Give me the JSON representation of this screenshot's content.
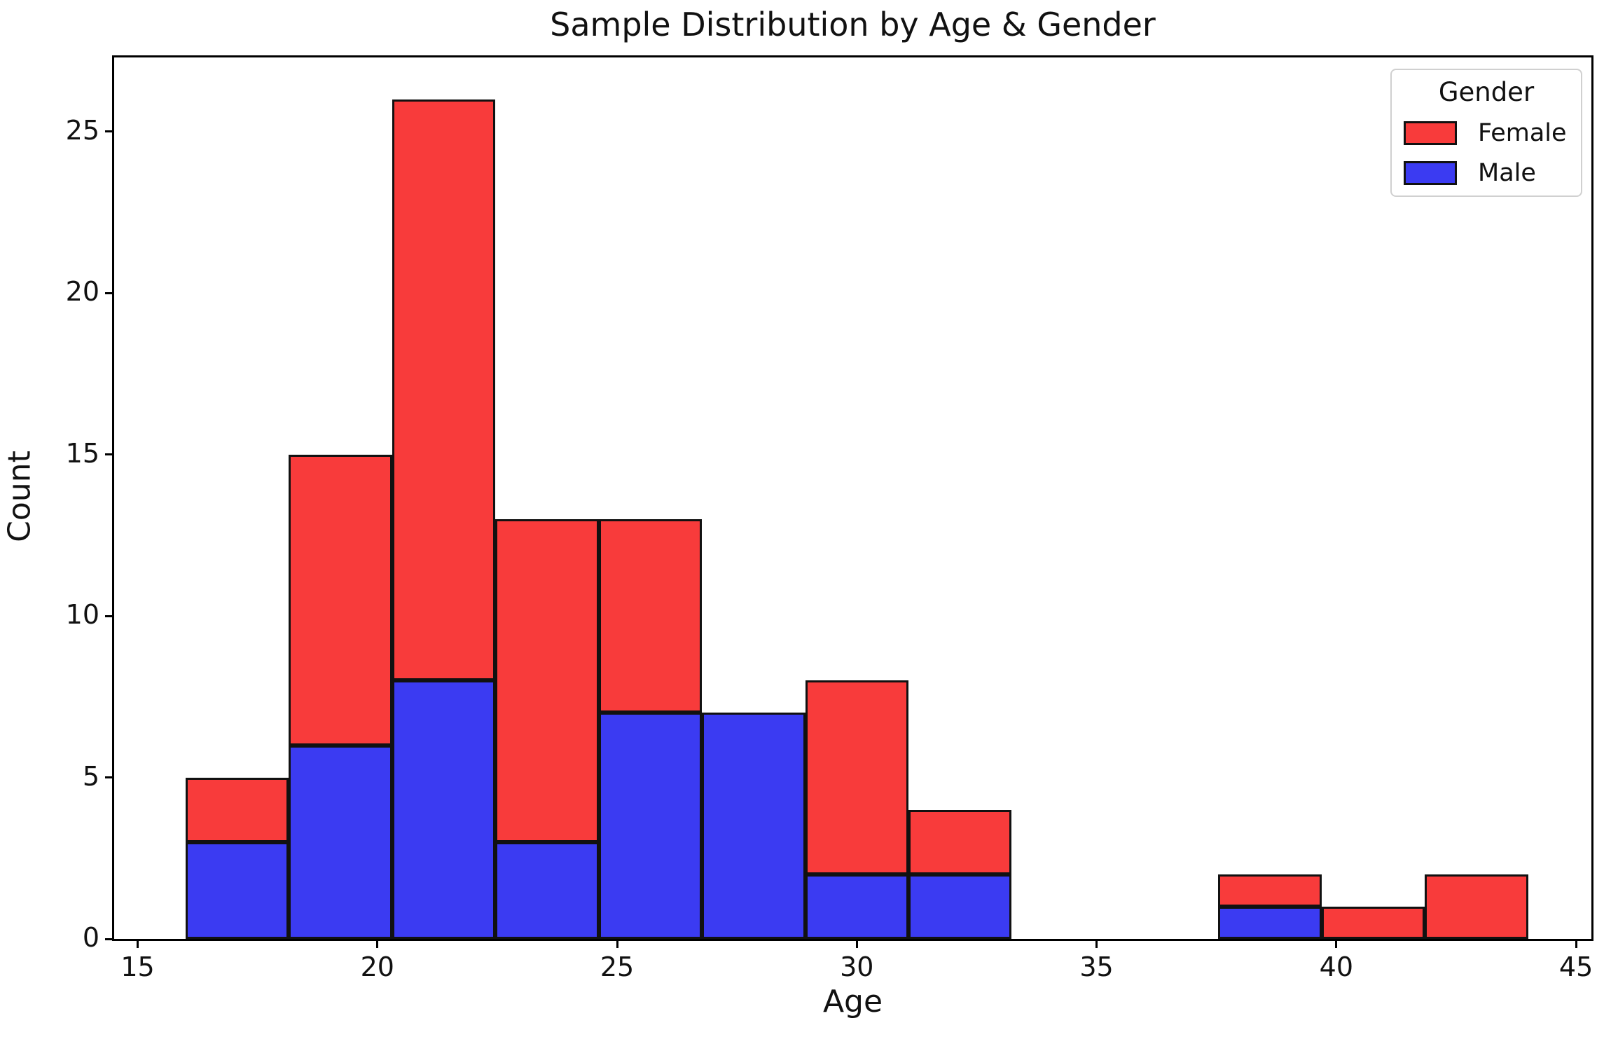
{
  "figure": {
    "title": "Sample Distribution by Age & Gender"
  },
  "chart_data": {
    "type": "bar",
    "subtype": "stacked-histogram",
    "title": "Sample Distribution by Age & Gender",
    "xlabel": "Age",
    "ylabel": "Count",
    "xlim": [
      14.51,
      45.32
    ],
    "ylim": [
      0,
      27.3
    ],
    "x_ticks": [
      15,
      20,
      25,
      30,
      35,
      40,
      45
    ],
    "y_ticks": [
      0,
      5,
      10,
      15,
      20,
      25
    ],
    "grid": false,
    "bin_edges": [
      16,
      18.154,
      20.308,
      22.462,
      24.615,
      26.769,
      28.923,
      31.077,
      33.231,
      35.385,
      37.538,
      39.692,
      41.846,
      44
    ],
    "series": [
      {
        "name": "Male",
        "color": "#3b3bf2",
        "values": [
          3,
          6,
          8,
          3,
          7,
          7,
          2,
          2,
          0,
          0,
          1,
          0,
          0
        ]
      },
      {
        "name": "Female",
        "color": "#f83b3b",
        "values": [
          2,
          9,
          18,
          10,
          6,
          0,
          6,
          2,
          0,
          0,
          1,
          1,
          2
        ]
      }
    ],
    "stack_order_bottom_to_top": [
      "Male",
      "Female"
    ],
    "totals": [
      5,
      15,
      26,
      13,
      13,
      7,
      8,
      4,
      0,
      0,
      2,
      1,
      2
    ],
    "bar_edge_color": "#111111",
    "legend": {
      "title": "Gender",
      "position": "upper right",
      "entries": [
        {
          "label": "Female",
          "color": "#f83b3b"
        },
        {
          "label": "Male",
          "color": "#3b3bf2"
        }
      ]
    }
  }
}
